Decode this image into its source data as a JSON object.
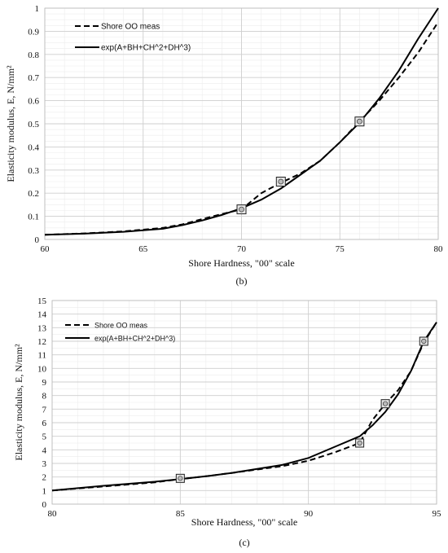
{
  "chart_data": [
    {
      "type": "line",
      "xlabel": "Shore Hardness, \"00\" scale",
      "ylabel": "Elasticity modulus, E, N/mm²",
      "xlim": [
        60,
        80
      ],
      "ylim": [
        0,
        1
      ],
      "xticks": [
        60,
        65,
        70,
        75,
        80
      ],
      "yticks": [
        0,
        0.1,
        0.2,
        0.3,
        0.4,
        0.5,
        0.6,
        0.7,
        0.8,
        0.9,
        1
      ],
      "ytick_labels": [
        "0",
        "0.1",
        "0.2",
        "0.3",
        "0.4",
        "0.5",
        "0.6",
        "0.7",
        "0.8",
        "0.9",
        "1"
      ],
      "grid": true,
      "legend_position": "top-left",
      "caption": "(b)",
      "series": [
        {
          "name": "Shore OO meas",
          "style": "dashed",
          "color": "#000000",
          "x": [
            60,
            62,
            64,
            66,
            67,
            68,
            69,
            70,
            71,
            72,
            73,
            74,
            75,
            76,
            77,
            78,
            79,
            80
          ],
          "y": [
            0.02,
            0.026,
            0.035,
            0.05,
            0.065,
            0.088,
            0.11,
            0.13,
            0.2,
            0.245,
            0.285,
            0.34,
            0.42,
            0.51,
            0.6,
            0.7,
            0.81,
            0.94
          ]
        },
        {
          "name": "exp(A+BH+CH^2+DH^3)",
          "style": "solid",
          "color": "#000000",
          "x": [
            60,
            62,
            64,
            66,
            67,
            68,
            69,
            70,
            71,
            72,
            73,
            74,
            75,
            76,
            77,
            78,
            79,
            80
          ],
          "y": [
            0.02,
            0.025,
            0.033,
            0.046,
            0.062,
            0.082,
            0.106,
            0.135,
            0.172,
            0.22,
            0.28,
            0.34,
            0.42,
            0.505,
            0.61,
            0.73,
            0.87,
            1.0
          ]
        }
      ],
      "markers": [
        {
          "x": 70,
          "y": 0.13
        },
        {
          "x": 72,
          "y": 0.25
        },
        {
          "x": 76,
          "y": 0.51
        }
      ]
    },
    {
      "type": "line",
      "xlabel": "Shore Hardness, \"00\" scale",
      "ylabel": "Elasticity modulus, E, N/mm²",
      "xlim": [
        80,
        95
      ],
      "ylim": [
        0,
        15
      ],
      "xticks": [
        80,
        85,
        90,
        95
      ],
      "yticks": [
        0,
        1,
        2,
        3,
        4,
        5,
        6,
        7,
        8,
        9,
        10,
        11,
        12,
        13,
        14,
        15
      ],
      "ytick_labels": [
        "0",
        "1",
        "2",
        "3",
        "4",
        "5",
        "6",
        "7",
        "8",
        "9",
        "10",
        "11",
        "12",
        "13",
        "14",
        "15"
      ],
      "grid": true,
      "legend_position": "top-left",
      "caption": "(c)",
      "series": [
        {
          "name": "Shore OO meas",
          "style": "dashed",
          "color": "#000000",
          "x": [
            80,
            82,
            84,
            85,
            86,
            87,
            88,
            89,
            90,
            91,
            92,
            92.5,
            93,
            93.5,
            94,
            94.5,
            95
          ],
          "y": [
            1.0,
            1.3,
            1.6,
            1.85,
            2.05,
            2.3,
            2.55,
            2.8,
            3.2,
            3.8,
            4.5,
            6.2,
            7.4,
            8.4,
            9.8,
            11.9,
            13.4
          ]
        },
        {
          "name": "exp(A+BH+CH^2+DH^3)",
          "style": "solid",
          "color": "#000000",
          "x": [
            80,
            82,
            84,
            85,
            86,
            87,
            88,
            89,
            90,
            91,
            92,
            92.5,
            93,
            93.5,
            94,
            94.5,
            95
          ],
          "y": [
            1.0,
            1.35,
            1.65,
            1.85,
            2.05,
            2.3,
            2.6,
            2.9,
            3.4,
            4.2,
            5.0,
            5.8,
            6.8,
            8.1,
            9.8,
            12.0,
            13.4
          ]
        }
      ],
      "markers": [
        {
          "x": 85,
          "y": 1.9
        },
        {
          "x": 92,
          "y": 4.5
        },
        {
          "x": 93,
          "y": 7.4
        },
        {
          "x": 94.5,
          "y": 12.0
        }
      ]
    }
  ]
}
